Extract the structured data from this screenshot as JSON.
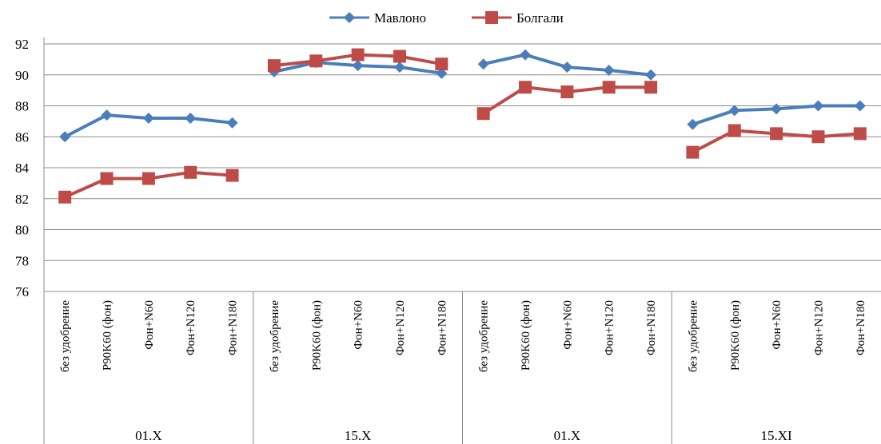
{
  "chart_data": {
    "type": "line",
    "title": "",
    "xlabel": "",
    "ylabel": "",
    "ylim": [
      76,
      92
    ],
    "yticks": [
      76,
      78,
      80,
      82,
      84,
      86,
      88,
      90,
      92
    ],
    "grid": true,
    "legend_position": "top",
    "groups": [
      "01.X",
      "15.X",
      "01.X",
      "15.XI"
    ],
    "categories": [
      "без удобрение",
      "P90K60 (фон)",
      "Фон+N60",
      "Фон+N120",
      "Фон+N180",
      "без удобрение",
      "P90K60 (фон)",
      "Фон+N60",
      "Фон+N120",
      "Фон+N180",
      "без удобрение",
      "P90K60 (фон)",
      "Фон+N60",
      "Фон+N120",
      "Фон+N180",
      "без удобрение",
      "P90K60 (фон)",
      "Фон+N60",
      "Фон+N120",
      "Фон+N180"
    ],
    "series": [
      {
        "name": "Мавлоно",
        "color": "#4a7ebb",
        "marker": "diamond",
        "values": [
          86.0,
          87.4,
          87.2,
          87.2,
          86.9,
          90.2,
          90.8,
          90.6,
          90.5,
          90.1,
          90.7,
          91.3,
          90.5,
          90.3,
          90.0,
          86.8,
          87.7,
          87.8,
          88.0,
          88.0
        ]
      },
      {
        "name": "Болгали",
        "color": "#be4b48",
        "marker": "square",
        "values": [
          82.1,
          83.3,
          83.3,
          83.7,
          83.5,
          90.6,
          90.9,
          91.3,
          91.2,
          90.7,
          87.5,
          89.2,
          88.9,
          89.2,
          89.2,
          85.0,
          86.4,
          86.2,
          86.0,
          86.2
        ]
      }
    ]
  }
}
